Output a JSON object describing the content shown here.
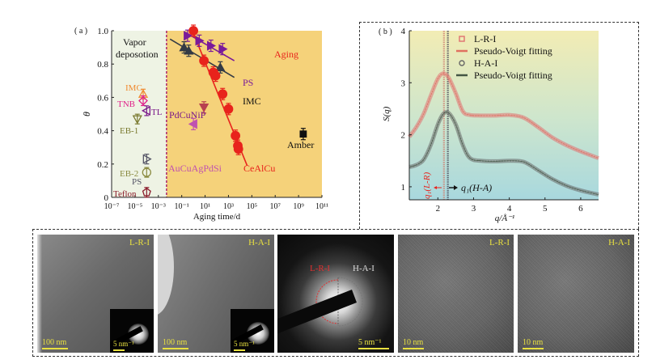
{
  "chart_data": [
    {
      "type": "scatter",
      "panel_label": "( a )",
      "title": "",
      "xlabel": "Aging time/d",
      "ylabel": "θ",
      "xscale": "log",
      "xlim_log10": [
        -7,
        11
      ],
      "ylim": [
        0,
        1.0
      ],
      "xticks": [
        "10⁻⁷",
        "10⁻⁵",
        "10⁻³",
        "10⁻¹",
        "10¹",
        "10³",
        "10⁵",
        "10⁷",
        "10⁹",
        "10¹¹"
      ],
      "yticks": [
        "0",
        "0.2",
        "0.4",
        "0.6",
        "0.8",
        "1.0"
      ],
      "regions": [
        {
          "name": "Vapor deposition",
          "label_lines": [
            "Vapor",
            "deposotion"
          ],
          "x_log10_range": [
            -7,
            -2.3
          ],
          "color": "#eef3e4"
        },
        {
          "name": "Aging",
          "label": "Aging",
          "x_log10_range": [
            -2.3,
            11
          ],
          "color": "#f5d27a",
          "label_color": "#e8231c"
        }
      ],
      "divider": {
        "x_log10": -2.3,
        "style": "dashed",
        "color": "#b03070"
      },
      "vapor_points": [
        {
          "name": "IMC",
          "x_log10": -4.3,
          "y": 0.62,
          "marker": "triangle-up-open",
          "color": "#f08a30"
        },
        {
          "name": "TNB",
          "x_log10": -4.3,
          "y": 0.58,
          "marker": "diamond-open",
          "color": "#e0208a"
        },
        {
          "name": "TL",
          "x_log10": -4.0,
          "y": 0.52,
          "marker": "triangle-left-open",
          "color": "#7a1a8a"
        },
        {
          "name": "EB-1",
          "x_log10": -4.8,
          "y": 0.47,
          "marker": "triangle-down-open",
          "color": "#7a7a30"
        },
        {
          "name": "PS",
          "x_log10": -4.0,
          "y": 0.23,
          "marker": "triangle-right-open",
          "color": "#555566"
        },
        {
          "name": "EB-2",
          "x_log10": -4.0,
          "y": 0.15,
          "marker": "circle-open",
          "color": "#8a8a40"
        },
        {
          "name": "Teflon",
          "x_log10": -4.0,
          "y": 0.03,
          "marker": "pentagon-open",
          "color": "#8a1a2a"
        }
      ],
      "series": [
        {
          "name": "PS",
          "color": "#7a1a9a",
          "marker": "triangle-right",
          "points": [
            [
              -0.5,
              0.97
            ],
            [
              0.5,
              0.94
            ],
            [
              1.5,
              0.91
            ],
            [
              2.5,
              0.89
            ]
          ],
          "fit": [
            [
              -0.7,
              0.99
            ],
            [
              3.5,
              0.82
            ]
          ]
        },
        {
          "name": "IMC",
          "color": "#333b45",
          "marker": "triangle-up",
          "points": [
            [
              -0.8,
              0.9
            ],
            [
              -0.4,
              0.88
            ],
            [
              2.3,
              0.78
            ]
          ],
          "fit": [
            [
              -2.0,
              0.95
            ],
            [
              3.5,
              0.72
            ]
          ]
        },
        {
          "name": "CeAlCu",
          "color": "#e8231c",
          "marker": "circle",
          "points": [
            [
              0.0,
              1.0
            ],
            [
              0.9,
              0.82
            ],
            [
              1.7,
              0.75
            ],
            [
              1.9,
              0.73
            ],
            [
              2.5,
              0.62
            ],
            [
              3.0,
              0.53
            ],
            [
              3.6,
              0.37
            ],
            [
              3.8,
              0.31
            ],
            [
              3.85,
              0.29
            ]
          ],
          "fit": [
            [
              -0.2,
              1.02
            ],
            [
              4.6,
              0.19
            ]
          ]
        },
        {
          "name": "PdCuNiP",
          "color": "#b84050",
          "marker": "triangle-down",
          "points": [
            [
              0.9,
              0.54
            ]
          ],
          "label_color": "#7a1a8a"
        },
        {
          "name": "AuCuAgPdSi",
          "color": "#c050b0",
          "marker": "triangle-left",
          "points": [
            [
              0.0,
              0.44
            ]
          ]
        },
        {
          "name": "Amber",
          "color": "#111111",
          "marker": "square",
          "points": [
            [
              9.4,
              0.38
            ]
          ]
        }
      ]
    },
    {
      "type": "line",
      "panel_label": "( b )",
      "title": "",
      "xlabel": "q/Å⁻¹",
      "ylabel": "S(q)",
      "xlim": [
        1.2,
        6.5
      ],
      "ylim": [
        0.75,
        4
      ],
      "xticks": [
        2,
        3,
        4,
        5,
        6
      ],
      "yticks": [
        1,
        2,
        3,
        4
      ],
      "legend": {
        "placement": "top-right",
        "entries": [
          {
            "label": "L-R-I",
            "kind": "marker-square-open",
            "color": "#e07070"
          },
          {
            "label": "Pseudo-Voigt fitting",
            "kind": "line",
            "color": "#e07060"
          },
          {
            "label": "H-A-I",
            "kind": "marker-circle-open",
            "color": "#666666"
          },
          {
            "label": "Pseudo-Voigt fitting",
            "kind": "line",
            "color": "#445544"
          }
        ]
      },
      "series": [
        {
          "name": "L-R-I",
          "color": "#e07070",
          "x": [
            1.2,
            1.4,
            1.6,
            1.8,
            2.0,
            2.15,
            2.3,
            2.5,
            2.7,
            2.9,
            3.2,
            3.6,
            4.0,
            4.4,
            4.8,
            5.2,
            5.6,
            6.0,
            6.5
          ],
          "y": [
            1.96,
            2.15,
            2.4,
            2.75,
            3.08,
            3.18,
            3.1,
            2.8,
            2.45,
            2.38,
            2.37,
            2.37,
            2.38,
            2.33,
            2.15,
            1.95,
            1.8,
            1.68,
            1.55
          ]
        },
        {
          "name": "H-A-I",
          "color": "#666666",
          "x": [
            1.2,
            1.4,
            1.6,
            1.8,
            2.0,
            2.15,
            2.3,
            2.5,
            2.7,
            2.9,
            3.2,
            3.6,
            4.0,
            4.4,
            4.8,
            5.2,
            5.6,
            6.0,
            6.5
          ],
          "y": [
            1.38,
            1.42,
            1.52,
            1.8,
            2.2,
            2.4,
            2.42,
            2.2,
            1.8,
            1.55,
            1.5,
            1.49,
            1.5,
            1.48,
            1.32,
            1.15,
            1.02,
            0.93,
            0.85
          ]
        }
      ],
      "vlines": [
        {
          "label": "q₁(L-R)",
          "x": 2.17,
          "color": "#e8231c"
        },
        {
          "label": "q₁(H-A)",
          "x": 2.28,
          "color": "#223322"
        }
      ],
      "annotations": [
        {
          "text": "q₁(L-R)",
          "color": "#e8231c",
          "rotated": true
        },
        {
          "text": "q₁(H-A)",
          "color": "#111111"
        }
      ]
    }
  ],
  "tem_panels": [
    {
      "label": "L-R-I",
      "scale": "100 nm",
      "inset_scale": "5 nm⁻¹"
    },
    {
      "label": "H-A-I",
      "scale": "100 nm",
      "inset_scale": "5 nm⁻¹"
    },
    {
      "label_left": "L-R-I",
      "label_right": "H-A-I",
      "scale": "5 nm⁻¹"
    },
    {
      "label": "L-R-I",
      "scale": "10 nm"
    },
    {
      "label": "H-A-I",
      "scale": "10 nm"
    }
  ]
}
